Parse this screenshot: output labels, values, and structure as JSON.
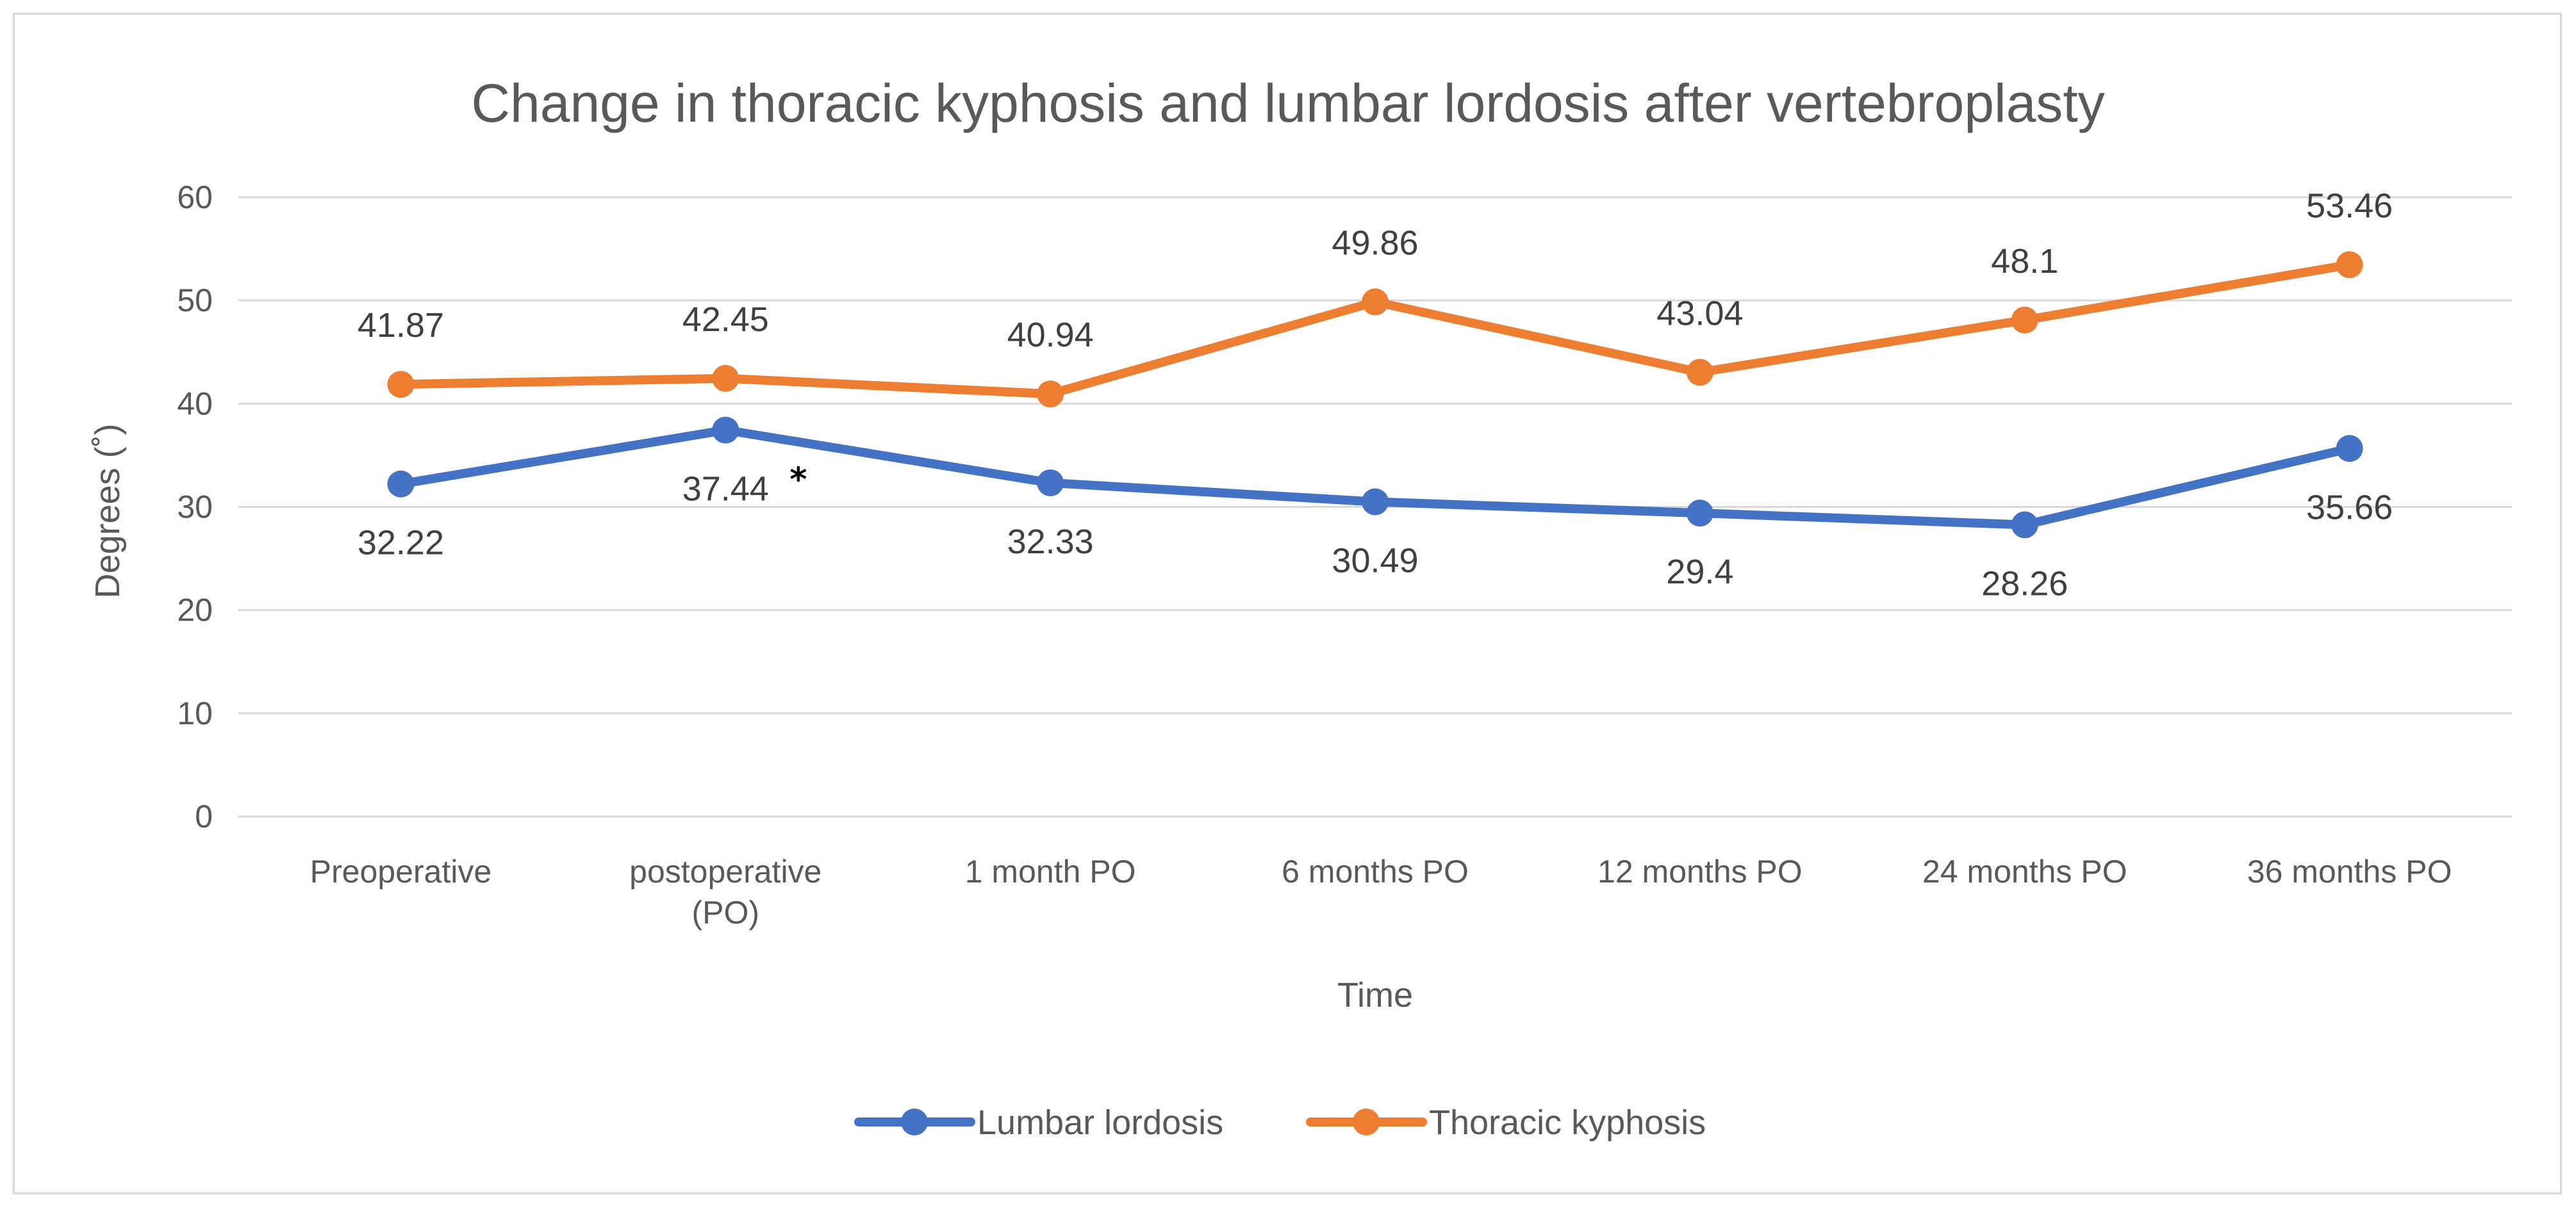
{
  "chart_data": {
    "type": "line",
    "title": "Change in thoracic kyphosis and lumbar lordosis after vertebroplasty",
    "xlabel": "Time",
    "ylabel": "Degrees (˚)",
    "ylim": [
      0,
      60
    ],
    "yticks": [
      0,
      10,
      20,
      30,
      40,
      50,
      60
    ],
    "grid": true,
    "legend_position": "bottom",
    "categories": [
      [
        "Preoperative"
      ],
      [
        "postoperative",
        "(PO)"
      ],
      [
        "1 month PO"
      ],
      [
        "6 months PO"
      ],
      [
        "12 months PO"
      ],
      [
        "24 months PO"
      ],
      [
        "36 months PO"
      ]
    ],
    "series": [
      {
        "name": "Lumbar lordosis",
        "color": "#4472c4",
        "values": [
          32.22,
          37.44,
          32.33,
          30.49,
          29.4,
          28.26,
          35.66
        ],
        "labels": [
          "32.22",
          "37.44",
          "32.33",
          "30.49",
          "29.4",
          "28.26",
          "35.66"
        ],
        "label_position": "below"
      },
      {
        "name": "Thoracic kyphosis",
        "color": "#ed7d31",
        "values": [
          41.87,
          42.45,
          40.94,
          49.86,
          43.04,
          48.1,
          53.46
        ],
        "labels": [
          "41.87",
          "42.45",
          "40.94",
          "49.86",
          "43.04",
          "48.1",
          "53.46"
        ],
        "label_position": "above"
      }
    ],
    "annotations": [
      {
        "text": "*",
        "series": "Lumbar lordosis",
        "category_index": 1
      }
    ]
  }
}
